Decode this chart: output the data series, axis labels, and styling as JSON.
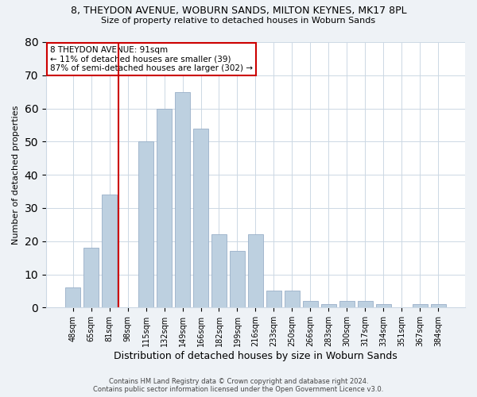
{
  "title1": "8, THEYDON AVENUE, WOBURN SANDS, MILTON KEYNES, MK17 8PL",
  "title2": "Size of property relative to detached houses in Woburn Sands",
  "xlabel": "Distribution of detached houses by size in Woburn Sands",
  "ylabel": "Number of detached properties",
  "categories": [
    "48sqm",
    "65sqm",
    "81sqm",
    "98sqm",
    "115sqm",
    "132sqm",
    "149sqm",
    "166sqm",
    "182sqm",
    "199sqm",
    "216sqm",
    "233sqm",
    "250sqm",
    "266sqm",
    "283sqm",
    "300sqm",
    "317sqm",
    "334sqm",
    "351sqm",
    "367sqm",
    "384sqm"
  ],
  "values": [
    6,
    18,
    34,
    0,
    50,
    60,
    65,
    54,
    22,
    17,
    22,
    5,
    5,
    2,
    1,
    2,
    2,
    1,
    0,
    1,
    1
  ],
  "bar_color": "#bdd0e0",
  "bar_edgecolor": "#9ab0c8",
  "vline_color": "#cc0000",
  "vline_x_index": 3,
  "annotation_text": "8 THEYDON AVENUE: 91sqm\n← 11% of detached houses are smaller (39)\n87% of semi-detached houses are larger (302) →",
  "annotation_box_edgecolor": "#cc0000",
  "annotation_box_facecolor": "#ffffff",
  "ylim": [
    0,
    80
  ],
  "yticks": [
    0,
    10,
    20,
    30,
    40,
    50,
    60,
    70,
    80
  ],
  "footer": "Contains HM Land Registry data © Crown copyright and database right 2024.\nContains public sector information licensed under the Open Government Licence v3.0.",
  "background_color": "#eef2f6",
  "plot_background_color": "#ffffff",
  "title1_fontsize": 9,
  "title2_fontsize": 8,
  "ylabel_fontsize": 8,
  "xlabel_fontsize": 9,
  "tick_fontsize": 7,
  "footer_fontsize": 6,
  "annotation_fontsize": 7.5
}
